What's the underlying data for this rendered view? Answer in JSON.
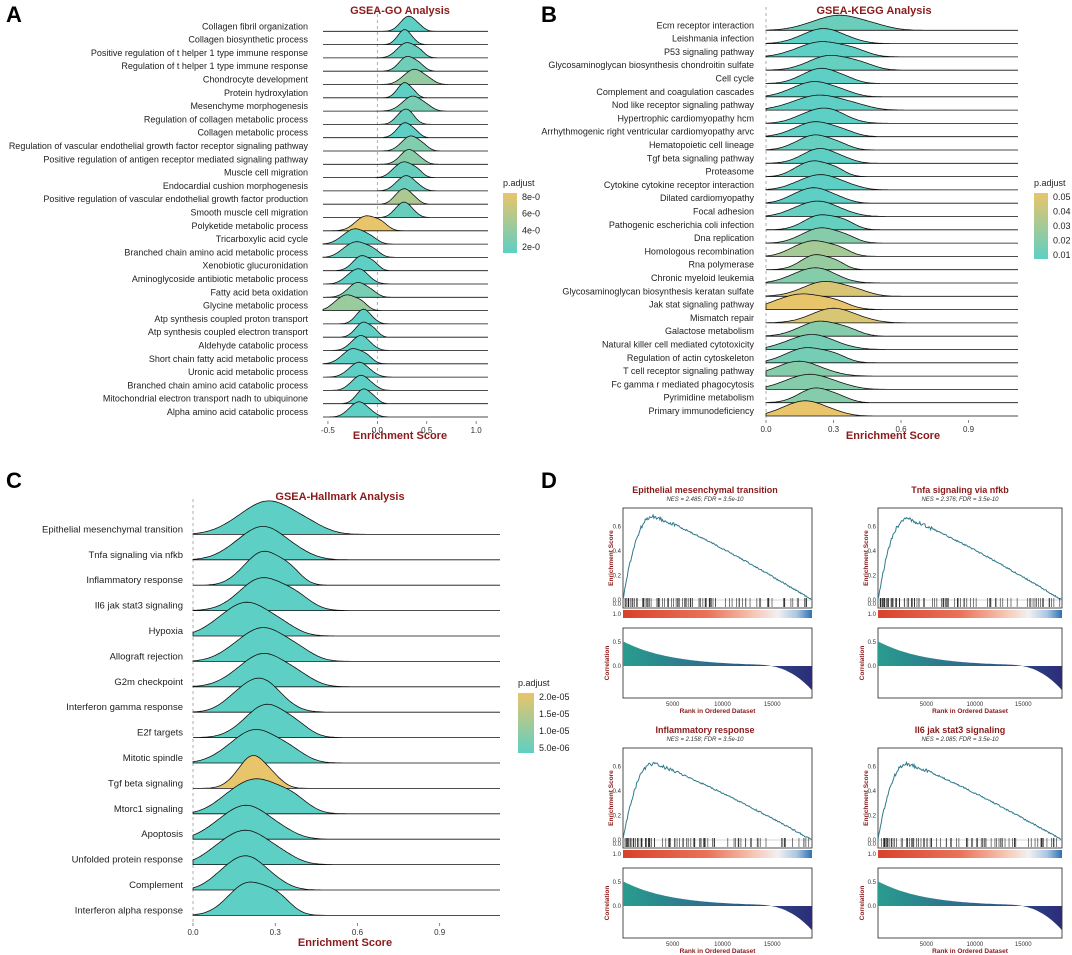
{
  "colors": {
    "high": "#e8c56a",
    "low": "#5ecfc4",
    "title": "#8b1a1a",
    "curve": "#2e7a8c",
    "neg": "#2c2c7a"
  },
  "chart_data": [
    {
      "panel": "A",
      "type": "ridgeline",
      "title": "GSEA-GO Analysis",
      "xlabel": "Enrichment Score",
      "xticks": [
        "-0.5",
        "0.0",
        "0.5",
        "1.0"
      ],
      "xlim": [
        -0.55,
        1.12
      ],
      "legend_title": "p.adjust",
      "legend_ticks": [
        "8e-0",
        "6e-0",
        "4e-0",
        "2e-0"
      ],
      "categories": [
        "Collagen fibril organization",
        "Collagen biosynthetic process",
        "Positive regulation of t helper 1 type immune response",
        "Regulation of t helper 1 type immune response",
        "Chondrocyte development",
        "Protein hydroxylation",
        "Mesenchyme morphogenesis",
        "Regulation of collagen metabolic process",
        "Collagen metabolic process",
        "Regulation of vascular endothelial growth factor receptor signaling pathway",
        "Positive regulation of antigen receptor mediated signaling pathway",
        "Muscle cell migration",
        "Endocardial cushion morphogenesis",
        "Positive regulation of vascular endothelial growth factor production",
        "Smooth muscle cell migration",
        "Polyketide metabolic process",
        "Tricarboxylic acid cycle",
        "Branched chain amino acid metabolic process",
        "Xenobiotic glucuronidation",
        "Aminoglycoside antibiotic metabolic process",
        "Fatty acid beta oxidation",
        "Glycine metabolic process",
        "Atp synthesis coupled proton transport",
        "Atp synthesis coupled electron transport",
        "Aldehyde catabolic process",
        "Short chain fatty acid metabolic process",
        "Uronic acid metabolic process",
        "Branched chain amino acid catabolic process",
        "Mitochondrial electron transport nadh to ubiquinone",
        "Alpha amino acid catabolic process"
      ],
      "peaks": [
        0.32,
        0.28,
        0.3,
        0.3,
        0.38,
        0.28,
        0.36,
        0.3,
        0.28,
        0.34,
        0.32,
        0.28,
        0.3,
        0.28,
        0.28,
        -0.12,
        -0.22,
        -0.2,
        -0.16,
        -0.18,
        -0.2,
        -0.3,
        -0.14,
        -0.14,
        -0.16,
        -0.25,
        -0.18,
        -0.16,
        -0.14,
        -0.18
      ],
      "spreads": [
        0.07,
        0.06,
        0.08,
        0.08,
        0.09,
        0.06,
        0.09,
        0.07,
        0.07,
        0.08,
        0.08,
        0.08,
        0.08,
        0.07,
        0.07,
        0.1,
        0.1,
        0.1,
        0.08,
        0.09,
        0.09,
        0.09,
        0.07,
        0.07,
        0.08,
        0.09,
        0.09,
        0.08,
        0.07,
        0.08
      ],
      "padj": [
        0.15,
        0.15,
        0.2,
        0.25,
        0.45,
        0.15,
        0.3,
        0.2,
        0.15,
        0.35,
        0.4,
        0.2,
        0.2,
        0.6,
        0.2,
        0.95,
        0.15,
        0.2,
        0.15,
        0.15,
        0.3,
        0.5,
        0.15,
        0.15,
        0.15,
        0.15,
        0.15,
        0.15,
        0.15,
        0.15
      ]
    },
    {
      "panel": "B",
      "type": "ridgeline",
      "title": "GSEA-KEGG Analysis",
      "xlabel": "Enrichment Score",
      "xticks": [
        "0.0",
        "0.3",
        "0.6",
        "0.9"
      ],
      "xlim": [
        0.0,
        1.12
      ],
      "legend_title": "p.adjust",
      "legend_ticks": [
        "0.05",
        "0.04",
        "0.03",
        "0.02",
        "0.01"
      ],
      "categories": [
        "Ecm receptor interaction",
        "Leishmania infection",
        "P53 signaling pathway",
        "Glycosaminoglycan biosynthesis chondroitin sulfate",
        "Cell cycle",
        "Complement and coagulation cascades",
        "Nod like receptor signaling pathway",
        "Hypertrophic cardiomyopathy hcm",
        "Arrhythmogenic right ventricular cardiomyopathy arvc",
        "Hematopoietic cell lineage",
        "Tgf beta signaling pathway",
        "Proteasome",
        "Cytokine cytokine receptor interaction",
        "Dilated cardiomyopathy",
        "Focal adhesion",
        "Pathogenic escherichia coli infection",
        "Dna replication",
        "Homologous recombination",
        "Rna polymerase",
        "Chronic myeloid leukemia",
        "Glycosaminoglycan biosynthesis keratan sulfate",
        "Jak stat signaling pathway",
        "Mismatch repair",
        "Galactose metabolism",
        "Natural killer cell mediated cytotoxicity",
        "Regulation of actin cytoskeleton",
        "T cell receptor signaling pathway",
        "Fc gamma r mediated phagocytosis",
        "Pyrimidine metabolism",
        "Primary immunodeficiency"
      ],
      "peaks": [
        0.33,
        0.26,
        0.25,
        0.28,
        0.25,
        0.22,
        0.24,
        0.27,
        0.22,
        0.22,
        0.24,
        0.22,
        0.25,
        0.22,
        0.24,
        0.24,
        0.25,
        0.22,
        0.22,
        0.23,
        0.26,
        0.17,
        0.3,
        0.24,
        0.21,
        0.18,
        0.15,
        0.2,
        0.22,
        0.18
      ],
      "spreads": [
        0.1,
        0.08,
        0.09,
        0.09,
        0.07,
        0.08,
        0.1,
        0.08,
        0.08,
        0.07,
        0.07,
        0.06,
        0.08,
        0.07,
        0.08,
        0.07,
        0.07,
        0.07,
        0.06,
        0.08,
        0.09,
        0.09,
        0.09,
        0.08,
        0.09,
        0.08,
        0.09,
        0.09,
        0.07,
        0.08
      ],
      "padj": [
        0.012,
        0.008,
        0.008,
        0.01,
        0.008,
        0.008,
        0.008,
        0.008,
        0.008,
        0.01,
        0.008,
        0.01,
        0.008,
        0.008,
        0.01,
        0.01,
        0.02,
        0.03,
        0.025,
        0.02,
        0.045,
        0.05,
        0.045,
        0.02,
        0.015,
        0.015,
        0.02,
        0.02,
        0.02,
        0.05
      ]
    },
    {
      "panel": "C",
      "type": "ridgeline",
      "title": "GSEA-Hallmark Analysis",
      "xlabel": "Enrichment Score",
      "xticks": [
        "0.0",
        "0.3",
        "0.6",
        "0.9"
      ],
      "xlim": [
        0.0,
        1.12
      ],
      "legend_title": "p.adjust",
      "legend_ticks": [
        "2.0e-05",
        "1.5e-05",
        "1.0e-05",
        "5.0e-06"
      ],
      "categories": [
        "Epithelial mesenchymal transition",
        "Tnfa signaling via nfkb",
        "Inflammatory response",
        "Il6 jak stat3 signaling",
        "Hypoxia",
        "Allograft rejection",
        "G2m checkpoint",
        "Interferon gamma response",
        "E2f targets",
        "Mitotic spindle",
        "Tgf beta signaling",
        "Mtorc1 signaling",
        "Apoptosis",
        "Unfolded protein response",
        "Complement",
        "Interferon alpha response"
      ],
      "peaks": [
        0.28,
        0.26,
        0.26,
        0.25,
        0.2,
        0.26,
        0.26,
        0.25,
        0.27,
        0.23,
        0.22,
        0.24,
        0.2,
        0.2,
        0.2,
        0.2
      ],
      "spreads": [
        0.09,
        0.08,
        0.06,
        0.08,
        0.08,
        0.08,
        0.08,
        0.07,
        0.07,
        0.08,
        0.05,
        0.08,
        0.08,
        0.08,
        0.07,
        0.07
      ],
      "padj": [
        0.0,
        0.0,
        0.0,
        0.0,
        0.0,
        0.0,
        0.0,
        0.0,
        0.0,
        0.0,
        1.0,
        0.0,
        0.0,
        0.0,
        0.0,
        0.0
      ]
    },
    {
      "panel": "D",
      "type": "gsea_running_score",
      "plots": [
        {
          "title": "Epithelial mesenchymal transition",
          "sub": "NES = 2.485; FDR = 3.5e-10",
          "peak": 0.68
        },
        {
          "title": "Tnfa signaling via nfkb",
          "sub": "NES = 2.376; FDR = 3.5e-10",
          "peak": 0.66
        },
        {
          "title": "Inflammatory response",
          "sub": "NES = 2.158; FDR = 3.5e-10",
          "peak": 0.62
        },
        {
          "title": "Il6 jak stat3 signaling",
          "sub": "NES = 2.085; FDR = 3.5e-10",
          "peak": 0.62
        }
      ],
      "ylabel_top": "Enrichment Score",
      "ylabel_bottom": "Correlation",
      "xlabel": "Rank in Ordered Dataset",
      "xticks": [
        "5000",
        "10000",
        "15000"
      ]
    }
  ]
}
